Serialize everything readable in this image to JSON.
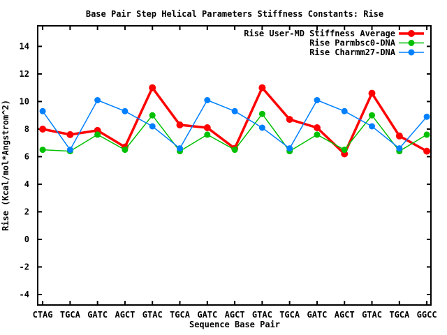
{
  "chart_data": {
    "type": "line",
    "title": "Base Pair Step Helical Parameters Stiffness Constants: Rise",
    "xlabel": "Sequence Base Pair",
    "ylabel": "Rise (Kcal/mol*Angstrom^2)",
    "categories": [
      "CTAG",
      "TGCA",
      "GATC",
      "AGCT",
      "GTAC",
      "TGCA",
      "GATC",
      "AGCT",
      "GTAC",
      "TGCA",
      "GATC",
      "AGCT",
      "GTAC",
      "TGCA",
      "GGCC"
    ],
    "series": [
      {
        "id": "user-md",
        "name": "Rise User-MD Stiffness Average",
        "color": "#ff0000",
        "line_width": 3.5,
        "marker": "filled-circle",
        "marker_radius": 5,
        "values": [
          8.0,
          7.6,
          7.9,
          6.7,
          11.0,
          8.3,
          8.1,
          6.6,
          11.0,
          8.7,
          8.1,
          6.2,
          10.6,
          7.5,
          6.4
        ]
      },
      {
        "id": "parmbsc0",
        "name": "Rise Parmbsc0-DNA",
        "color": "#00c000",
        "line_width": 1.5,
        "marker": "filled-circle",
        "marker_radius": 4.5,
        "values": [
          6.5,
          6.4,
          7.6,
          6.5,
          9.0,
          6.4,
          7.6,
          6.5,
          9.1,
          6.4,
          7.6,
          6.5,
          9.0,
          6.4,
          7.6
        ]
      },
      {
        "id": "charmm27",
        "name": "Rise Charmm27-DNA",
        "color": "#0080ff",
        "line_width": 1.5,
        "marker": "filled-circle",
        "marker_radius": 4.5,
        "values": [
          9.3,
          6.5,
          10.1,
          9.3,
          8.2,
          6.6,
          10.1,
          9.3,
          8.1,
          6.6,
          10.1,
          9.3,
          8.2,
          6.6,
          8.9
        ]
      }
    ],
    "yticks": [
      -4,
      -2,
      0,
      2,
      4,
      6,
      8,
      10,
      12,
      14
    ],
    "ylim": [
      -4.76,
      15.49
    ],
    "xlim": [
      0.82,
      15.15
    ],
    "grid": false,
    "legend_position": "top-right-inside",
    "axis_color": "#000000",
    "background_color": "#ffffff"
  }
}
